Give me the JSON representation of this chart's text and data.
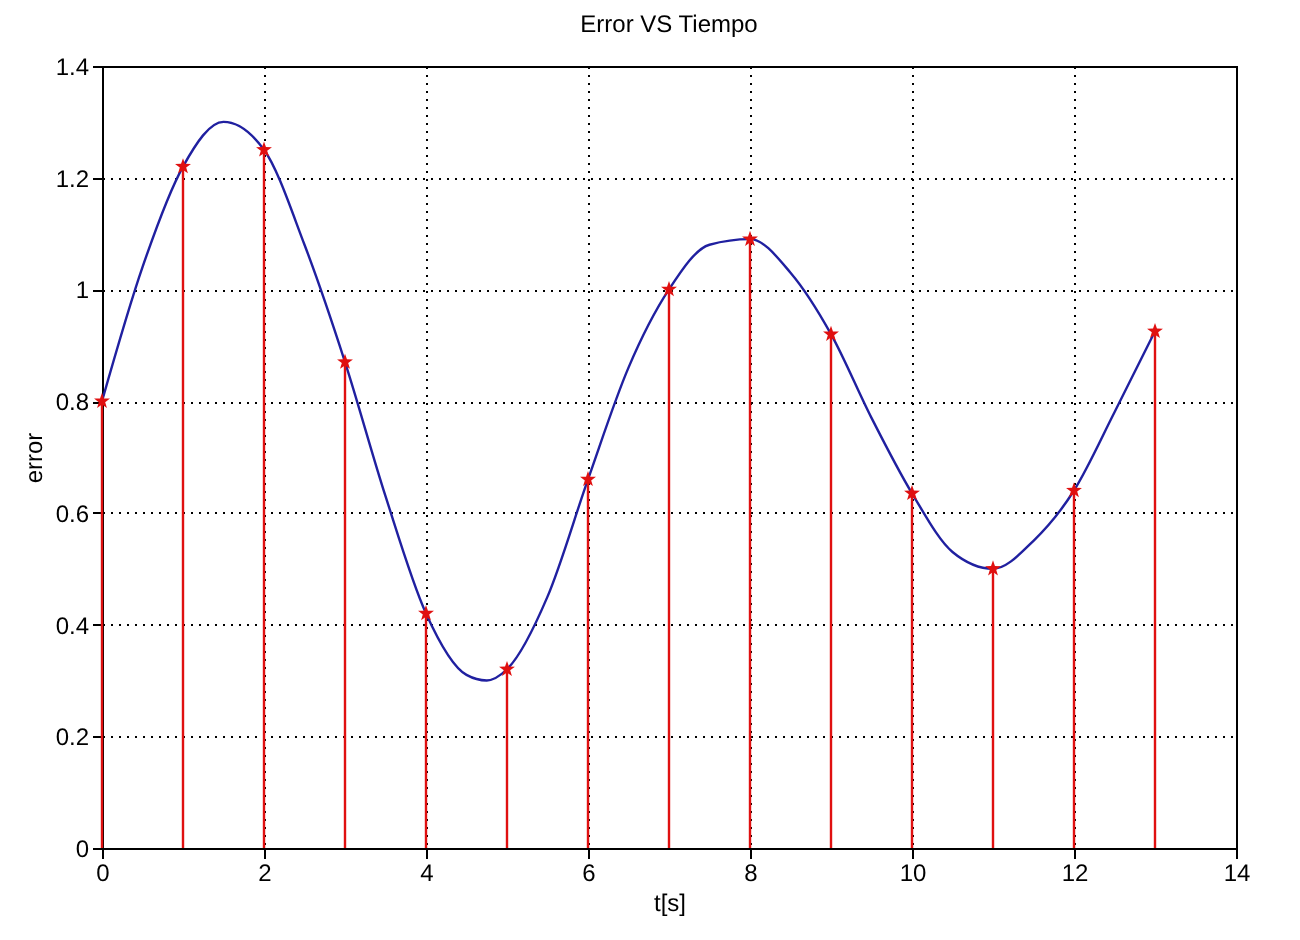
{
  "chart_data": {
    "type": "line",
    "title": "Error VS Tiempo",
    "xlabel": "t[s]",
    "ylabel": "error",
    "series": [
      {
        "color": "#2020a0",
        "marker": "none",
        "x": [
          0,
          0.5,
          1,
          1.5,
          2,
          2.5,
          3,
          3.5,
          4,
          4.5,
          4.75,
          5,
          5.5,
          6,
          6.5,
          7,
          7.5,
          8,
          8.5,
          9,
          9.5,
          10,
          10.5,
          11,
          11.5,
          12,
          12.5,
          13
        ],
        "values": [
          0.8,
          1.04,
          1.22,
          1.3,
          1.25,
          1.08,
          0.87,
          0.63,
          0.42,
          0.31,
          0.3,
          0.32,
          0.45,
          0.66,
          0.86,
          1.0,
          1.08,
          1.09,
          1.03,
          0.92,
          0.77,
          0.635,
          0.53,
          0.5,
          0.55,
          0.64,
          0.78,
          0.925
        ]
      },
      {
        "type": "lollipop",
        "color": "#e01010",
        "marker": "star",
        "x": [
          0,
          1,
          2,
          3,
          4,
          5,
          6,
          7,
          8,
          9,
          10,
          11,
          12,
          13
        ],
        "values": [
          0.8,
          1.22,
          1.25,
          0.87,
          0.42,
          0.32,
          0.66,
          1.0,
          1.09,
          0.92,
          0.635,
          0.5,
          0.64,
          0.925
        ]
      }
    ],
    "xlim": [
      0,
      14
    ],
    "xticks": [
      0,
      2,
      4,
      6,
      8,
      10,
      12,
      14
    ],
    "ylim": [
      0,
      1.4
    ],
    "yticks": [
      0,
      0.2,
      0.4,
      0.6,
      0.8,
      1,
      1.2,
      1.4
    ],
    "grid": true
  }
}
